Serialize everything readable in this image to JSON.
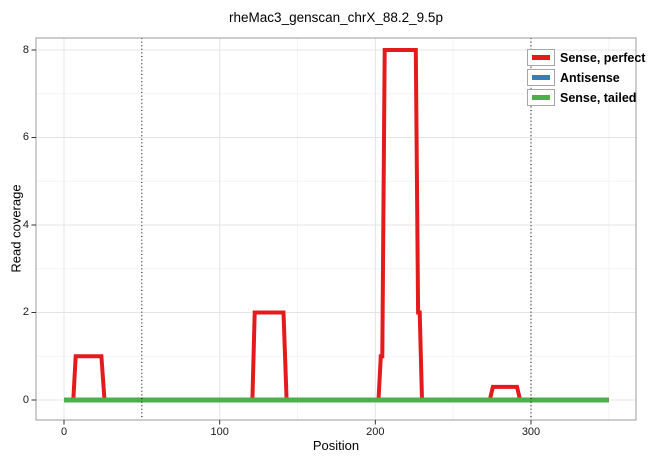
{
  "chart_data": {
    "type": "line",
    "title": "rheMac3_genscan_chrX_88.2_9.5p",
    "xlabel": "Position",
    "ylabel": "Read coverage",
    "x_ticks": [
      0,
      100,
      200,
      300
    ],
    "x_minor_ticks": [
      50,
      150,
      250,
      350
    ],
    "y_ticks": [
      0,
      2,
      4,
      6,
      8
    ],
    "y_minor_ticks": [
      1,
      3,
      5,
      7
    ],
    "xlim": [
      -18,
      368
    ],
    "ylim": [
      -0.45,
      8.3
    ],
    "grid": true,
    "legend_position": "top-right-inside",
    "vlines": {
      "positions": [
        50,
        300
      ],
      "style": "dotted",
      "color": "#000000"
    },
    "series": [
      {
        "name": "Antisense",
        "color": "#377EB8",
        "line_width": 4,
        "points": [
          [
            0,
            0
          ],
          [
            350,
            0
          ]
        ]
      },
      {
        "name": "Sense, perfect",
        "color": "#E41A1C",
        "line_width": 4,
        "points": [
          [
            0,
            0
          ],
          [
            6,
            0
          ],
          [
            7.5,
            1
          ],
          [
            24,
            1
          ],
          [
            26,
            0
          ],
          [
            121,
            0
          ],
          [
            122.5,
            2
          ],
          [
            141,
            2
          ],
          [
            143,
            0
          ],
          [
            202,
            0
          ],
          [
            203.5,
            1
          ],
          [
            204.5,
            1
          ],
          [
            206,
            8
          ],
          [
            226,
            8
          ],
          [
            227.5,
            2
          ],
          [
            228.5,
            2
          ],
          [
            230,
            0
          ],
          [
            273.5,
            0
          ],
          [
            275.5,
            0.3
          ],
          [
            291,
            0.3
          ],
          [
            293,
            0
          ],
          [
            350,
            0
          ]
        ]
      },
      {
        "name": "Sense, tailed",
        "color": "#4DAF4A",
        "line_width": 5,
        "points": [
          [
            0,
            0
          ],
          [
            350,
            0
          ]
        ]
      }
    ],
    "legend": [
      {
        "label": "Sense, perfect",
        "color": "#E41A1C"
      },
      {
        "label": "Antisense",
        "color": "#377EB8"
      },
      {
        "label": "Sense, tailed",
        "color": "#4DAF4A"
      }
    ]
  },
  "colors": {
    "background": "#ffffff",
    "panel_border": "#9b9b9b",
    "grid_major": "#e4e4e4",
    "grid_minor": "#f3f3f3",
    "tick": "#333333",
    "text": "#000000"
  }
}
